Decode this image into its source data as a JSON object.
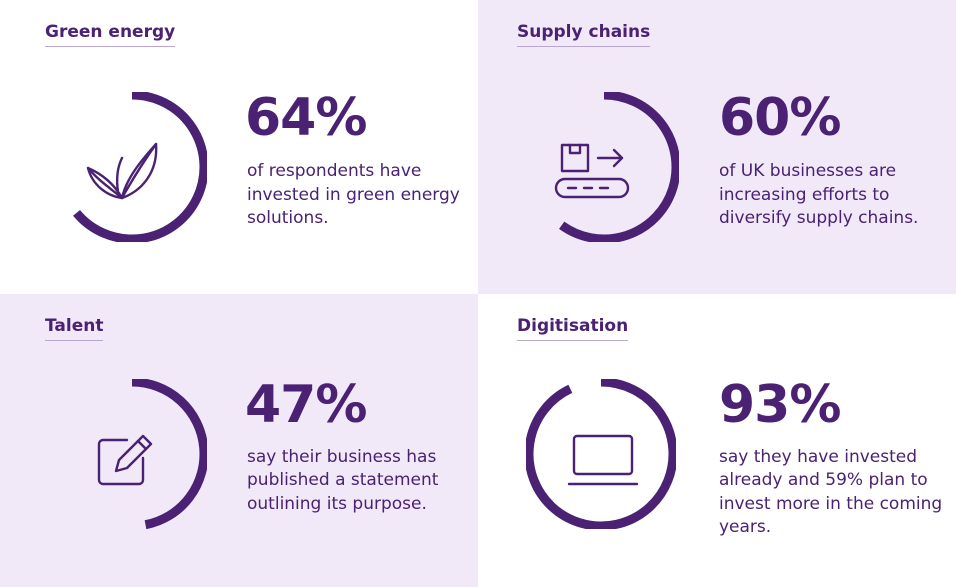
{
  "colors": {
    "accent": "#4a2173",
    "tint": "#f1e8f8",
    "white": "#ffffff",
    "track": "#e7dcf0"
  },
  "chart_data": [
    {
      "type": "pie",
      "title": "Green energy",
      "value_percent": 64,
      "value_label": "64%",
      "description": "of respondents have invested in green energy solutions.",
      "icon": "leaves-icon"
    },
    {
      "type": "pie",
      "title": "Supply chains",
      "value_percent": 60,
      "value_label": "60%",
      "description": "of UK businesses are increasing efforts to diversify supply chains.",
      "icon": "conveyor-box-icon"
    },
    {
      "type": "pie",
      "title": "Talent",
      "value_percent": 47,
      "value_label": "47%",
      "description": "say their business has published a statement outlining its purpose.",
      "icon": "edit-note-icon"
    },
    {
      "type": "pie",
      "title": "Digitisation",
      "value_percent": 93,
      "value_label": "93%",
      "description": "say they have invested already and 59% plan to invest more in the coming years.",
      "icon": "laptop-icon"
    }
  ]
}
